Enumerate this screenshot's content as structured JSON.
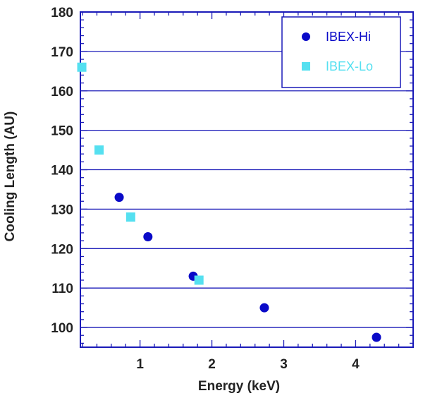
{
  "chart_data": {
    "type": "scatter",
    "xlabel": "Energy (keV)",
    "ylabel": "Cooling Length (AU)",
    "xlim": [
      0.17,
      4.8
    ],
    "ylim": [
      95,
      180
    ],
    "x_ticks": [
      "1",
      "2",
      "3",
      "4"
    ],
    "y_ticks": [
      "100",
      "110",
      "120",
      "130",
      "140",
      "150",
      "160",
      "170",
      "180"
    ],
    "grid": "horizontal",
    "legend_position": "top-right",
    "colors": {
      "axis": "#1a1ab8",
      "grid": "#1a1ab8"
    },
    "series": [
      {
        "name": "IBEX-Hi",
        "marker": "circle",
        "color": "#0a0ac8",
        "x": [
          0.71,
          1.11,
          1.74,
          2.73,
          4.29
        ],
        "y": [
          133,
          123,
          113,
          105,
          97.5
        ]
      },
      {
        "name": "IBEX-Lo",
        "marker": "square",
        "color": "#55e0f0",
        "x": [
          0.19,
          0.43,
          0.87,
          1.82
        ],
        "y": [
          166,
          145,
          128,
          112
        ]
      }
    ]
  }
}
